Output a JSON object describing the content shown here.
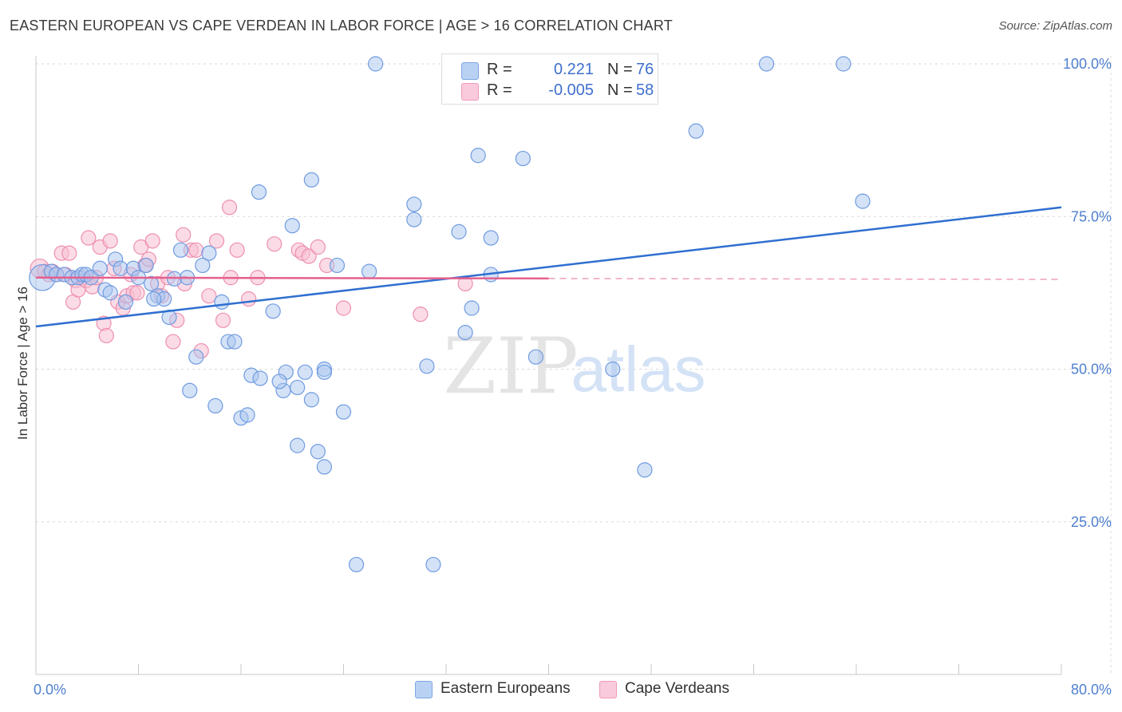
{
  "header": {
    "title": "EASTERN EUROPEAN VS CAPE VERDEAN IN LABOR FORCE | AGE > 16 CORRELATION CHART",
    "source": "Source: ZipAtlas.com"
  },
  "watermark": {
    "zip": "ZIP",
    "atlas": "atlas"
  },
  "legend": {
    "rows": [
      {
        "r_label": "R =",
        "r_value": "0.221",
        "n_label": "N =",
        "n_value": "76",
        "color": "#8fb4ea"
      },
      {
        "r_label": "R =",
        "r_value": "-0.005",
        "n_label": "N =",
        "n_value": "58",
        "color": "#f4a7c2"
      }
    ]
  },
  "colors": {
    "blue_fill": "#a9c6f0",
    "blue_stroke": "#6f9be0",
    "blue_line": "#2f6fd0",
    "pink_fill": "#f7bfd2",
    "pink_stroke": "#ee8fb0",
    "pink_line": "#e4608e",
    "tick_text": "#4f7fcf",
    "grid": "#d9d9d9"
  },
  "chart_data": {
    "type": "scatter",
    "title": "EASTERN EUROPEAN VS CAPE VERDEAN IN LABOR FORCE | AGE > 16 CORRELATION CHART",
    "xlabel": "",
    "ylabel": "In Labor Force | Age > 16",
    "xlim": [
      0,
      80
    ],
    "ylim": [
      0,
      105
    ],
    "x_tick_labels": [
      "0.0%",
      "80.0%"
    ],
    "y_ticks": [
      {
        "value": 25,
        "label": "25.0%"
      },
      {
        "value": 50,
        "label": "50.0%"
      },
      {
        "value": 75,
        "label": "75.0%"
      },
      {
        "value": 100,
        "label": "100.0%"
      }
    ],
    "grid": true,
    "legend_position": "bottom",
    "series": [
      {
        "name": "Eastern Europeans",
        "color": "#a9c6f0",
        "trend": {
          "x": [
            0,
            80
          ],
          "y": [
            57.0,
            76.5
          ],
          "dashed_from": null
        },
        "points": [
          [
            0.5,
            65.0,
            1.8
          ],
          [
            1.2,
            66.0,
            1
          ],
          [
            1.6,
            65.5,
            1
          ],
          [
            2.2,
            65.5,
            1
          ],
          [
            2.8,
            65.0,
            1
          ],
          [
            3.3,
            65.0,
            1
          ],
          [
            3.6,
            65.5,
            1
          ],
          [
            3.9,
            65.5,
            1
          ],
          [
            4.3,
            65.0,
            1
          ],
          [
            5.0,
            66.5,
            1
          ],
          [
            5.4,
            63.0,
            1
          ],
          [
            5.8,
            62.5,
            1
          ],
          [
            6.2,
            68.0,
            1
          ],
          [
            6.6,
            66.5,
            1
          ],
          [
            7.0,
            61.0,
            1
          ],
          [
            7.6,
            66.5,
            1
          ],
          [
            8.0,
            65.0,
            1
          ],
          [
            8.6,
            67.0,
            1
          ],
          [
            9.0,
            64.0,
            1
          ],
          [
            9.5,
            62.0,
            1
          ],
          [
            10.0,
            61.5,
            1
          ],
          [
            10.4,
            58.5,
            1
          ],
          [
            10.8,
            64.8,
            1
          ],
          [
            11.3,
            69.5,
            1
          ],
          [
            11.8,
            65.0,
            1
          ],
          [
            12.5,
            52.0,
            1
          ],
          [
            12.0,
            46.5,
            1
          ],
          [
            13.0,
            67.0,
            1
          ],
          [
            13.5,
            69.0,
            1
          ],
          [
            14.0,
            44.0,
            1
          ],
          [
            14.5,
            61.0,
            1
          ],
          [
            15.0,
            54.5,
            1
          ],
          [
            15.5,
            54.5,
            1
          ],
          [
            16.0,
            42.0,
            1
          ],
          [
            16.5,
            42.5,
            1
          ],
          [
            16.8,
            49.0,
            1
          ],
          [
            17.4,
            79.0,
            1
          ],
          [
            17.5,
            48.5,
            1
          ],
          [
            18.5,
            59.5,
            1
          ],
          [
            19.3,
            46.5,
            1
          ],
          [
            19.5,
            49.5,
            1
          ],
          [
            20.0,
            73.5,
            1
          ],
          [
            20.4,
            47.0,
            1
          ],
          [
            20.4,
            37.5,
            1
          ],
          [
            21.0,
            49.5,
            1
          ],
          [
            21.5,
            81.0,
            1
          ],
          [
            21.5,
            45.0,
            1
          ],
          [
            22.0,
            36.5,
            1
          ],
          [
            22.5,
            34.0,
            1
          ],
          [
            22.5,
            50.0,
            1
          ],
          [
            22.5,
            49.5,
            1
          ],
          [
            23.5,
            67.0,
            1
          ],
          [
            24.0,
            43.0,
            1
          ],
          [
            25.0,
            18.0,
            1
          ],
          [
            26.5,
            100.0,
            1
          ],
          [
            29.5,
            74.5,
            1
          ],
          [
            29.5,
            77.0,
            1
          ],
          [
            30.5,
            50.5,
            1
          ],
          [
            31.0,
            18.0,
            1
          ],
          [
            33.0,
            72.5,
            1
          ],
          [
            33.5,
            56.0,
            1
          ],
          [
            34.0,
            60.0,
            1
          ],
          [
            34.5,
            85.0,
            1
          ],
          [
            35.5,
            71.5,
            1
          ],
          [
            35.5,
            65.5,
            1
          ],
          [
            39.0,
            52.0,
            1
          ],
          [
            45.0,
            50.0,
            1
          ],
          [
            47.5,
            33.5,
            1
          ],
          [
            51.5,
            89.0,
            1
          ],
          [
            57.0,
            100.0,
            1
          ],
          [
            63.0,
            100.0,
            1
          ],
          [
            64.5,
            77.5,
            1
          ],
          [
            38.0,
            84.5,
            1
          ],
          [
            19.0,
            48.0,
            1
          ],
          [
            26.0,
            66.0,
            1
          ],
          [
            9.2,
            61.5,
            1
          ]
        ]
      },
      {
        "name": "Cape Verdeans",
        "color": "#f7bfd2",
        "trend": {
          "x": [
            0,
            80
          ],
          "y": [
            65.0,
            64.7
          ],
          "dashed_from": 40
        },
        "points": [
          [
            0.3,
            66.5,
            1.3
          ],
          [
            0.7,
            66.0,
            1
          ],
          [
            1.0,
            65.5,
            1
          ],
          [
            1.3,
            66.0,
            1
          ],
          [
            1.6,
            65.5,
            1
          ],
          [
            2.0,
            69.0,
            1
          ],
          [
            2.3,
            65.5,
            1
          ],
          [
            2.6,
            69.0,
            1
          ],
          [
            2.9,
            61.0,
            1
          ],
          [
            3.1,
            64.5,
            1
          ],
          [
            3.3,
            63.0,
            1
          ],
          [
            3.6,
            65.0,
            1
          ],
          [
            3.9,
            64.5,
            1
          ],
          [
            4.1,
            71.5,
            1
          ],
          [
            4.4,
            63.5,
            1
          ],
          [
            4.7,
            65.0,
            1
          ],
          [
            5.0,
            70.0,
            1
          ],
          [
            5.3,
            57.5,
            1
          ],
          [
            5.5,
            55.5,
            1
          ],
          [
            5.8,
            71.0,
            1
          ],
          [
            6.1,
            66.5,
            1
          ],
          [
            6.4,
            61.0,
            1
          ],
          [
            6.8,
            60.0,
            1
          ],
          [
            7.1,
            62.0,
            1
          ],
          [
            7.4,
            65.5,
            1
          ],
          [
            7.6,
            62.5,
            1
          ],
          [
            7.9,
            62.5,
            1
          ],
          [
            8.2,
            70.0,
            1
          ],
          [
            8.5,
            67.0,
            1
          ],
          [
            8.8,
            68.0,
            1
          ],
          [
            9.1,
            71.0,
            1
          ],
          [
            9.5,
            64.0,
            1
          ],
          [
            9.8,
            62.0,
            1
          ],
          [
            10.3,
            65.0,
            1
          ],
          [
            10.7,
            54.5,
            1
          ],
          [
            11.0,
            58.0,
            1
          ],
          [
            11.5,
            72.0,
            1
          ],
          [
            11.6,
            64.0,
            1
          ],
          [
            12.1,
            69.5,
            1
          ],
          [
            12.5,
            69.5,
            1
          ],
          [
            12.9,
            53.0,
            1
          ],
          [
            13.5,
            62.0,
            1
          ],
          [
            14.1,
            71.0,
            1
          ],
          [
            14.6,
            58.0,
            1
          ],
          [
            15.1,
            76.5,
            1
          ],
          [
            15.2,
            65.0,
            1
          ],
          [
            15.7,
            69.5,
            1
          ],
          [
            16.6,
            61.5,
            1
          ],
          [
            17.3,
            65.0,
            1
          ],
          [
            18.6,
            70.5,
            1
          ],
          [
            20.5,
            69.5,
            1
          ],
          [
            20.8,
            69.0,
            1
          ],
          [
            21.3,
            68.5,
            1
          ],
          [
            22.0,
            70.0,
            1
          ],
          [
            22.7,
            67.0,
            1
          ],
          [
            24.0,
            60.0,
            1
          ],
          [
            30.0,
            59.0,
            1
          ],
          [
            33.5,
            64.0,
            1
          ]
        ]
      }
    ]
  },
  "bottom_legend": [
    {
      "label": "Eastern Europeans",
      "color": "#a9c6f0"
    },
    {
      "label": "Cape Verdeans",
      "color": "#f7bfd2"
    }
  ]
}
